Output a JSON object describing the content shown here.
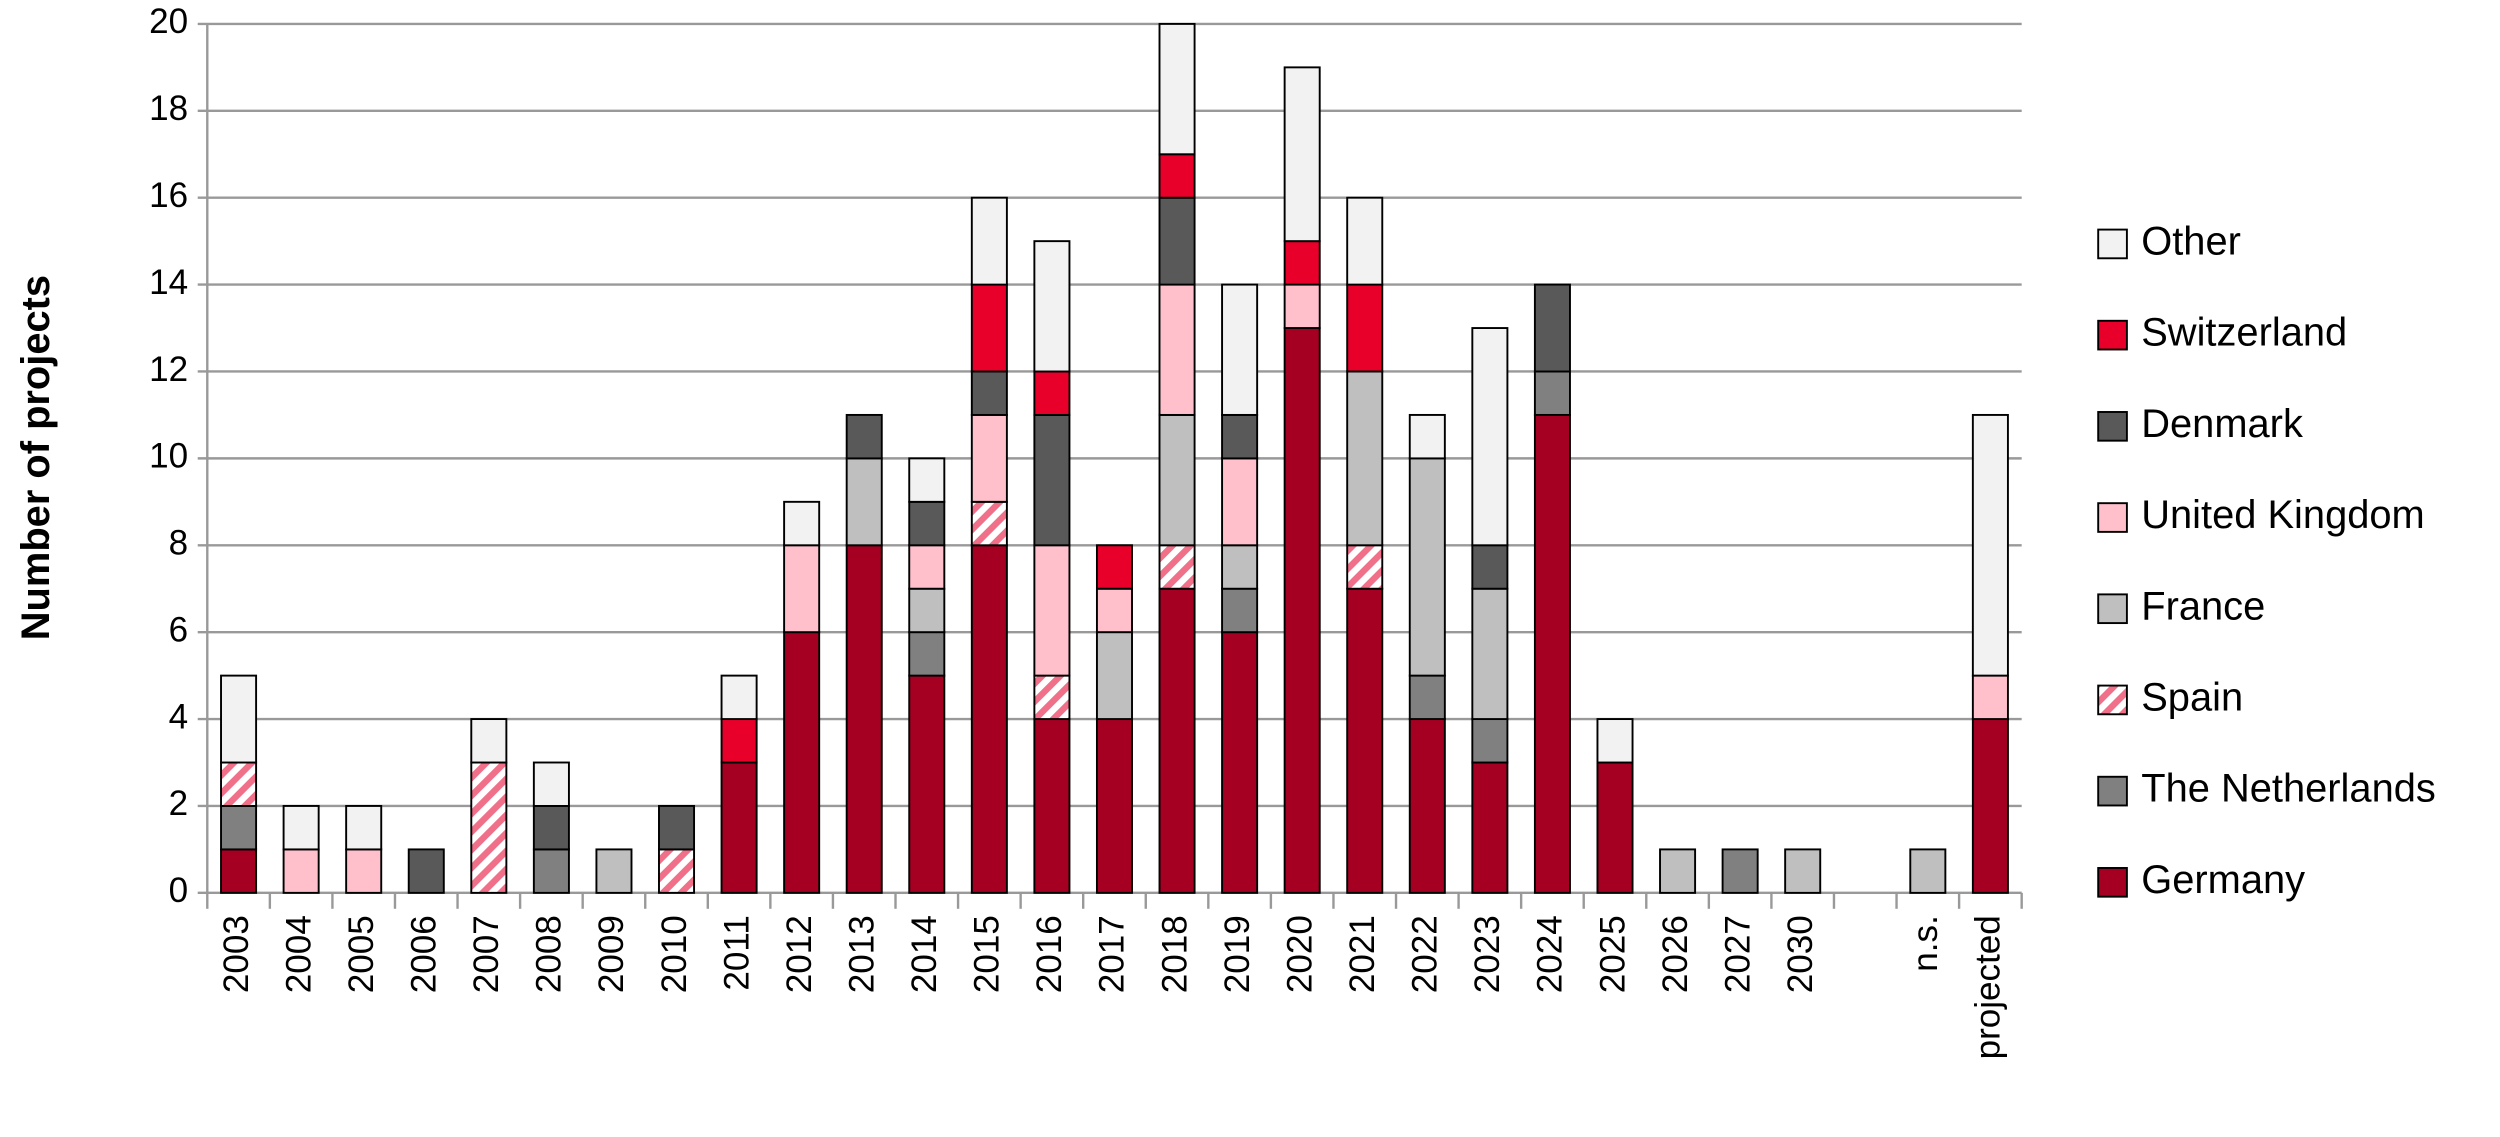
{
  "chart_data": {
    "type": "stacked_bar",
    "y_label": "Number of projects",
    "categories": [
      "2003",
      "2004",
      "2005",
      "2006",
      "2007",
      "2008",
      "2009",
      "2010",
      "2011",
      "2012",
      "2013",
      "2014",
      "2015",
      "2016",
      "2017",
      "2018",
      "2019",
      "2020",
      "2021",
      "2022",
      "2023",
      "2024",
      "2025",
      "2026",
      "2027",
      "2030",
      null,
      "n.s.",
      "projected"
    ],
    "series": [
      {
        "name": "Germany",
        "color": "#a50021",
        "values": [
          1,
          0,
          0,
          0,
          0,
          0,
          0,
          0,
          3,
          6,
          8,
          5,
          8,
          4,
          4,
          7,
          6,
          13,
          7,
          4,
          3,
          11,
          3,
          0,
          0,
          0,
          0,
          0,
          4
        ]
      },
      {
        "name": "The Netherlands",
        "color": "#808080",
        "values": [
          1,
          0,
          0,
          0,
          0,
          1,
          0,
          0,
          0,
          0,
          0,
          1,
          0,
          0,
          0,
          0,
          1,
          0,
          0,
          1,
          1,
          1,
          0,
          0,
          1,
          0,
          0,
          0,
          0
        ]
      },
      {
        "name": "Spain",
        "color": "#f0708a",
        "hatch": true,
        "values": [
          1,
          0,
          0,
          0,
          3,
          0,
          0,
          1,
          0,
          0,
          0,
          0,
          1,
          1,
          0,
          1,
          0,
          0,
          1,
          0,
          0,
          0,
          0,
          0,
          0,
          0,
          0,
          0,
          0
        ]
      },
      {
        "name": "France",
        "color": "#bfbfbf",
        "values": [
          0,
          0,
          0,
          0,
          0,
          0,
          1,
          0,
          0,
          0,
          2,
          1,
          0,
          0,
          2,
          3,
          1,
          0,
          4,
          5,
          3,
          0,
          0,
          1,
          0,
          1,
          0,
          1,
          0
        ]
      },
      {
        "name": "United Kingdom",
        "color": "#ffc0cb",
        "values": [
          0,
          1,
          1,
          0,
          0,
          0,
          0,
          0,
          0,
          2,
          0,
          1,
          2,
          3,
          1,
          3,
          2,
          1,
          0,
          0,
          0,
          0,
          0,
          0,
          0,
          0,
          0,
          0,
          1
        ]
      },
      {
        "name": "Denmark",
        "color": "#595959",
        "values": [
          0,
          0,
          0,
          1,
          0,
          1,
          0,
          1,
          0,
          0,
          1,
          1,
          1,
          3,
          0,
          2,
          1,
          0,
          0,
          0,
          1,
          2,
          0,
          0,
          0,
          0,
          0,
          0,
          0
        ]
      },
      {
        "name": "Switzerland",
        "color": "#e8002a",
        "values": [
          0,
          0,
          0,
          0,
          0,
          0,
          0,
          0,
          1,
          0,
          0,
          0,
          2,
          1,
          1,
          1,
          0,
          1,
          2,
          0,
          0,
          0,
          0,
          0,
          0,
          0,
          0,
          0,
          0
        ]
      },
      {
        "name": "Other",
        "color": "#f2f2f2",
        "values": [
          2,
          1,
          1,
          0,
          1,
          1,
          0,
          0,
          1,
          1,
          0,
          1,
          2,
          3,
          0,
          3,
          3,
          4,
          2,
          1,
          5,
          0,
          1,
          0,
          0,
          0,
          0,
          0,
          6
        ]
      }
    ],
    "ylim": [
      0,
      20
    ],
    "yticks": [
      0,
      2,
      4,
      6,
      8,
      10,
      12,
      14,
      16,
      18,
      20
    ],
    "grid": true,
    "legend": "right"
  }
}
